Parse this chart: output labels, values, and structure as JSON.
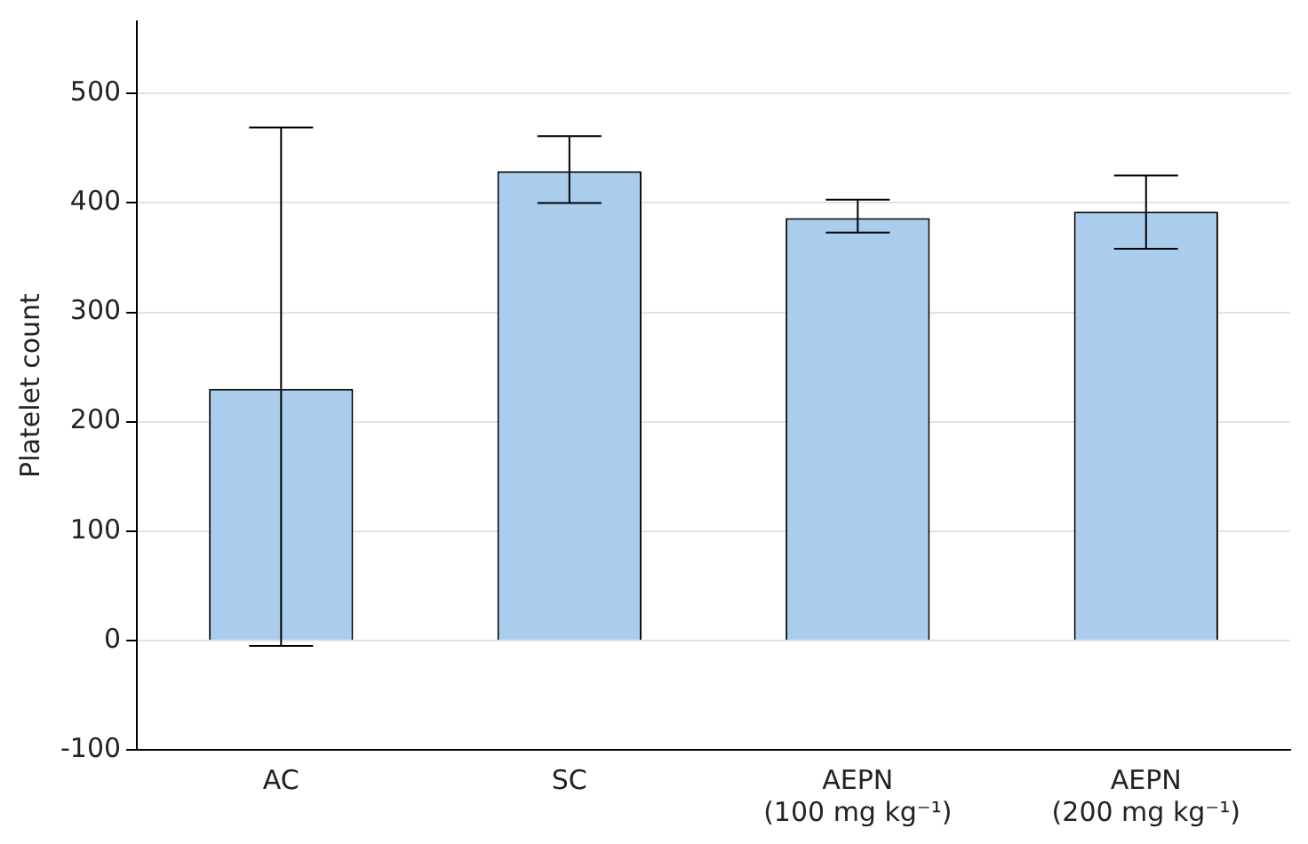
{
  "chart_data": {
    "type": "bar",
    "ylabel": "Platelet count",
    "categories": [
      "AC",
      "SC",
      "AEPN\n(100 mg kg⁻¹)",
      "AEPN\n(200 mg kg⁻¹)"
    ],
    "values": [
      230,
      429,
      386,
      392
    ],
    "errors": [
      [
        -5,
        469
      ],
      [
        400,
        461
      ],
      [
        373,
        403
      ],
      [
        358,
        425
      ]
    ],
    "color": "#aacdee",
    "ylim": [
      -100,
      566
    ],
    "yticks": [
      -100,
      0,
      100,
      200,
      300,
      400,
      500
    ],
    "grid": "y",
    "legend": false
  }
}
